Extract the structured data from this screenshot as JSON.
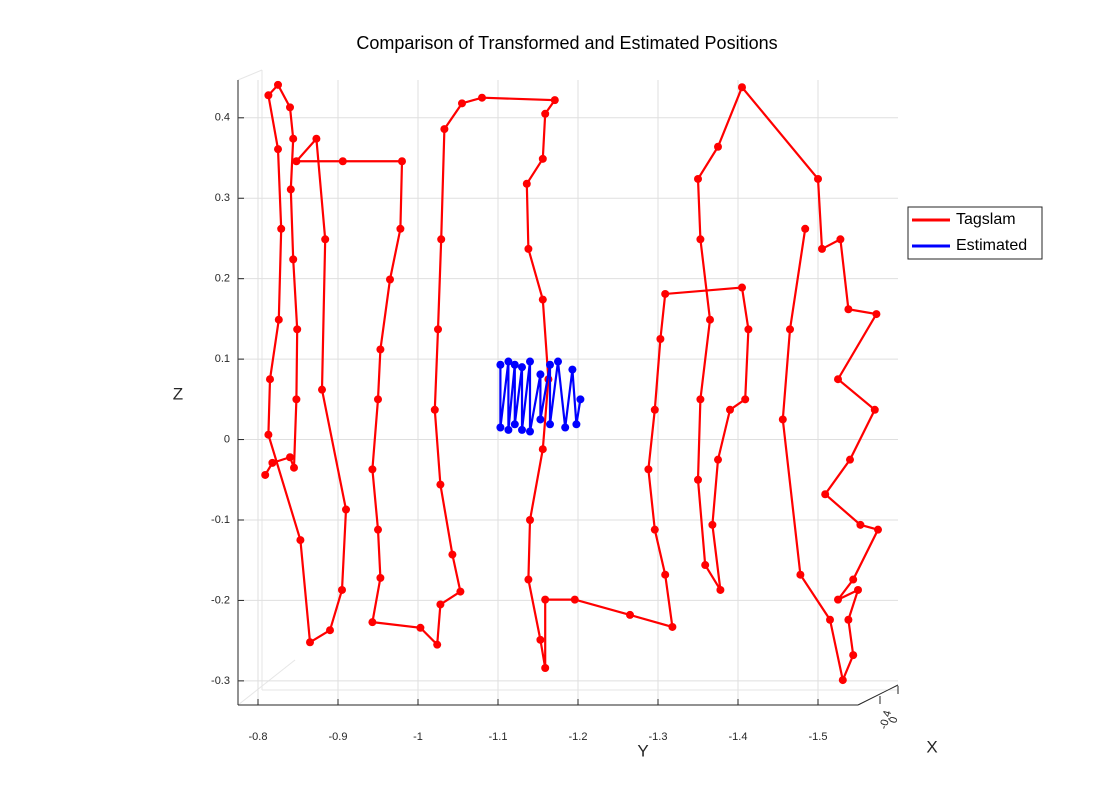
{
  "chart_data": {
    "type": "line",
    "title": "Comparison of Transformed and Estimated Positions",
    "xlabel": "Y",
    "ylabel": "Z",
    "zlabel": "X",
    "xlim": [
      -0.775,
      -1.55
    ],
    "xticks": [
      -0.8,
      -0.9,
      -1,
      -1.1,
      -1.2,
      -1.3,
      -1.4,
      -1.5
    ],
    "ylim": [
      -0.33,
      0.447
    ],
    "yticks": [
      -0.3,
      -0.2,
      -0.1,
      0,
      0.1,
      0.2,
      0.3,
      0.4
    ],
    "zticks": [
      0,
      -0.4
    ],
    "grid": true,
    "legend": "right",
    "series": [
      {
        "name": "Tagslam",
        "color": "#ff0000",
        "x": [
          -0.809,
          -0.818,
          -0.84,
          -0.845,
          -0.848,
          -0.849,
          -0.844,
          -0.841,
          -0.844,
          -0.84,
          -0.825,
          -0.813,
          -0.825,
          -0.829,
          -0.826,
          -0.815,
          -0.813,
          -0.853,
          -0.865,
          -0.89,
          -0.905,
          -0.91,
          -0.88,
          -0.884,
          -0.873,
          -0.848,
          -0.906,
          -0.98,
          -0.978,
          -0.965,
          -0.953,
          -0.95,
          -0.943,
          -0.95,
          -0.953,
          -0.943,
          -1.003,
          -1.024,
          -1.028,
          -1.053,
          -1.043,
          -1.028,
          -1.021,
          -1.025,
          -1.029,
          -1.033,
          -1.055,
          -1.08,
          -1.171,
          -1.159,
          -1.156,
          -1.136,
          -1.138,
          -1.156,
          -1.163,
          -1.156,
          -1.14,
          -1.138,
          -1.153,
          -1.159,
          -1.159,
          -1.196,
          -1.265,
          -1.318,
          -1.309,
          -1.296,
          -1.288,
          -1.296,
          -1.303,
          -1.309,
          -1.405,
          -1.413,
          -1.409,
          -1.39,
          -1.375,
          -1.368,
          -1.378,
          -1.359,
          -1.35,
          -1.353,
          -1.365,
          -1.353,
          -1.35,
          -1.375,
          -1.405,
          -1.5,
          -1.505,
          -1.528,
          -1.538,
          -1.573,
          -1.525,
          -1.571,
          -1.54,
          -1.509,
          -1.553,
          -1.575,
          -1.544,
          -1.525,
          -1.55,
          -1.538,
          -1.544,
          -1.531,
          -1.515,
          -1.478,
          -1.456,
          -1.465,
          -1.484
        ],
        "values": [
          -0.044,
          -0.029,
          -0.022,
          -0.035,
          0.05,
          0.137,
          0.224,
          0.311,
          0.374,
          0.413,
          0.441,
          0.428,
          0.361,
          0.262,
          0.149,
          0.075,
          0.006,
          -0.125,
          -0.252,
          -0.237,
          -0.187,
          -0.087,
          0.062,
          0.249,
          0.374,
          0.346,
          0.346,
          0.346,
          0.262,
          0.199,
          0.112,
          0.05,
          -0.037,
          -0.112,
          -0.172,
          -0.227,
          -0.234,
          -0.255,
          -0.205,
          -0.189,
          -0.143,
          -0.056,
          0.037,
          0.137,
          0.249,
          0.386,
          0.418,
          0.425,
          0.422,
          0.405,
          0.349,
          0.318,
          0.237,
          0.174,
          0.075,
          -0.012,
          -0.1,
          -0.174,
          -0.249,
          -0.284,
          -0.199,
          -0.199,
          -0.218,
          -0.233,
          -0.168,
          -0.112,
          -0.037,
          0.037,
          0.125,
          0.181,
          0.189,
          0.137,
          0.05,
          0.037,
          -0.025,
          -0.106,
          -0.187,
          -0.156,
          -0.05,
          0.05,
          0.149,
          0.249,
          0.324,
          0.364,
          0.438,
          0.324,
          0.237,
          0.249,
          0.162,
          0.156,
          0.075,
          0.037,
          -0.025,
          -0.068,
          -0.106,
          -0.112,
          -0.174,
          -0.199,
          -0.187,
          -0.224,
          -0.268,
          -0.299,
          -0.224,
          -0.168,
          0.025,
          0.137,
          0.262
        ]
      },
      {
        "name": "Estimated",
        "color": "#0000ff",
        "x": [
          -1.103,
          -1.103,
          -1.113,
          -1.113,
          -1.121,
          -1.121,
          -1.13,
          -1.13,
          -1.14,
          -1.14,
          -1.153,
          -1.153,
          -1.165,
          -1.165,
          -1.175,
          -1.184,
          -1.193,
          -1.198,
          -1.203
        ],
        "values": [
          0.093,
          0.015,
          0.097,
          0.012,
          0.093,
          0.019,
          0.09,
          0.012,
          0.097,
          0.01,
          0.081,
          0.025,
          0.093,
          0.019,
          0.097,
          0.015,
          0.087,
          0.019,
          0.05
        ]
      }
    ]
  }
}
